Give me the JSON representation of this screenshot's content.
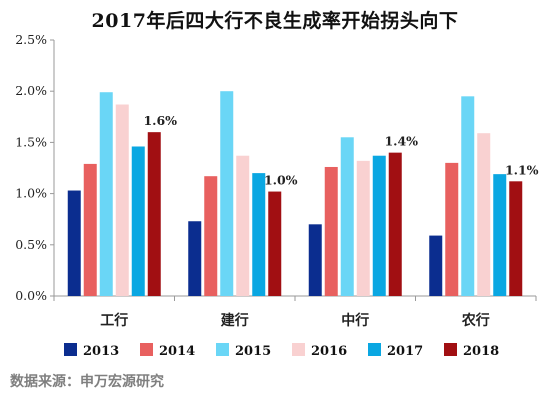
{
  "title": "2017年后四大行不良生成率开始拐头向下",
  "source": "数据来源：申万宏源研究",
  "colors": {
    "2013": "#0b2d8f",
    "2014": "#e8605f",
    "2015": "#6ad6f6",
    "2016": "#f9d1d1",
    "2017": "#0aa7e2",
    "2018": "#a10f12"
  },
  "chart_data": {
    "type": "bar",
    "title": "2017年后四大行不良生成率开始拐头向下",
    "categories": [
      "工行",
      "建行",
      "中行",
      "农行"
    ],
    "series": [
      {
        "name": "2013",
        "values": [
          1.03,
          0.73,
          0.7,
          0.59
        ]
      },
      {
        "name": "2014",
        "values": [
          1.29,
          1.17,
          1.26,
          1.3
        ]
      },
      {
        "name": "2015",
        "values": [
          1.99,
          2.0,
          1.55,
          1.95
        ]
      },
      {
        "name": "2016",
        "values": [
          1.87,
          1.37,
          1.32,
          1.59
        ]
      },
      {
        "name": "2017",
        "values": [
          1.46,
          1.2,
          1.37,
          1.19
        ]
      },
      {
        "name": "2018",
        "values": [
          1.6,
          1.02,
          1.4,
          1.12
        ]
      }
    ],
    "data_labels": [
      "1.6%",
      "1.0%",
      "1.4%",
      "1.1%"
    ],
    "ylim": [
      0,
      2.5
    ],
    "yticks": [
      "0.0%",
      "0.5%",
      "1.0%",
      "1.5%",
      "2.0%",
      "2.5%"
    ],
    "ytick_values": [
      0,
      0.5,
      1.0,
      1.5,
      2.0,
      2.5
    ],
    "xlabel": "",
    "ylabel": "",
    "grid": false,
    "legend_position": "bottom"
  }
}
